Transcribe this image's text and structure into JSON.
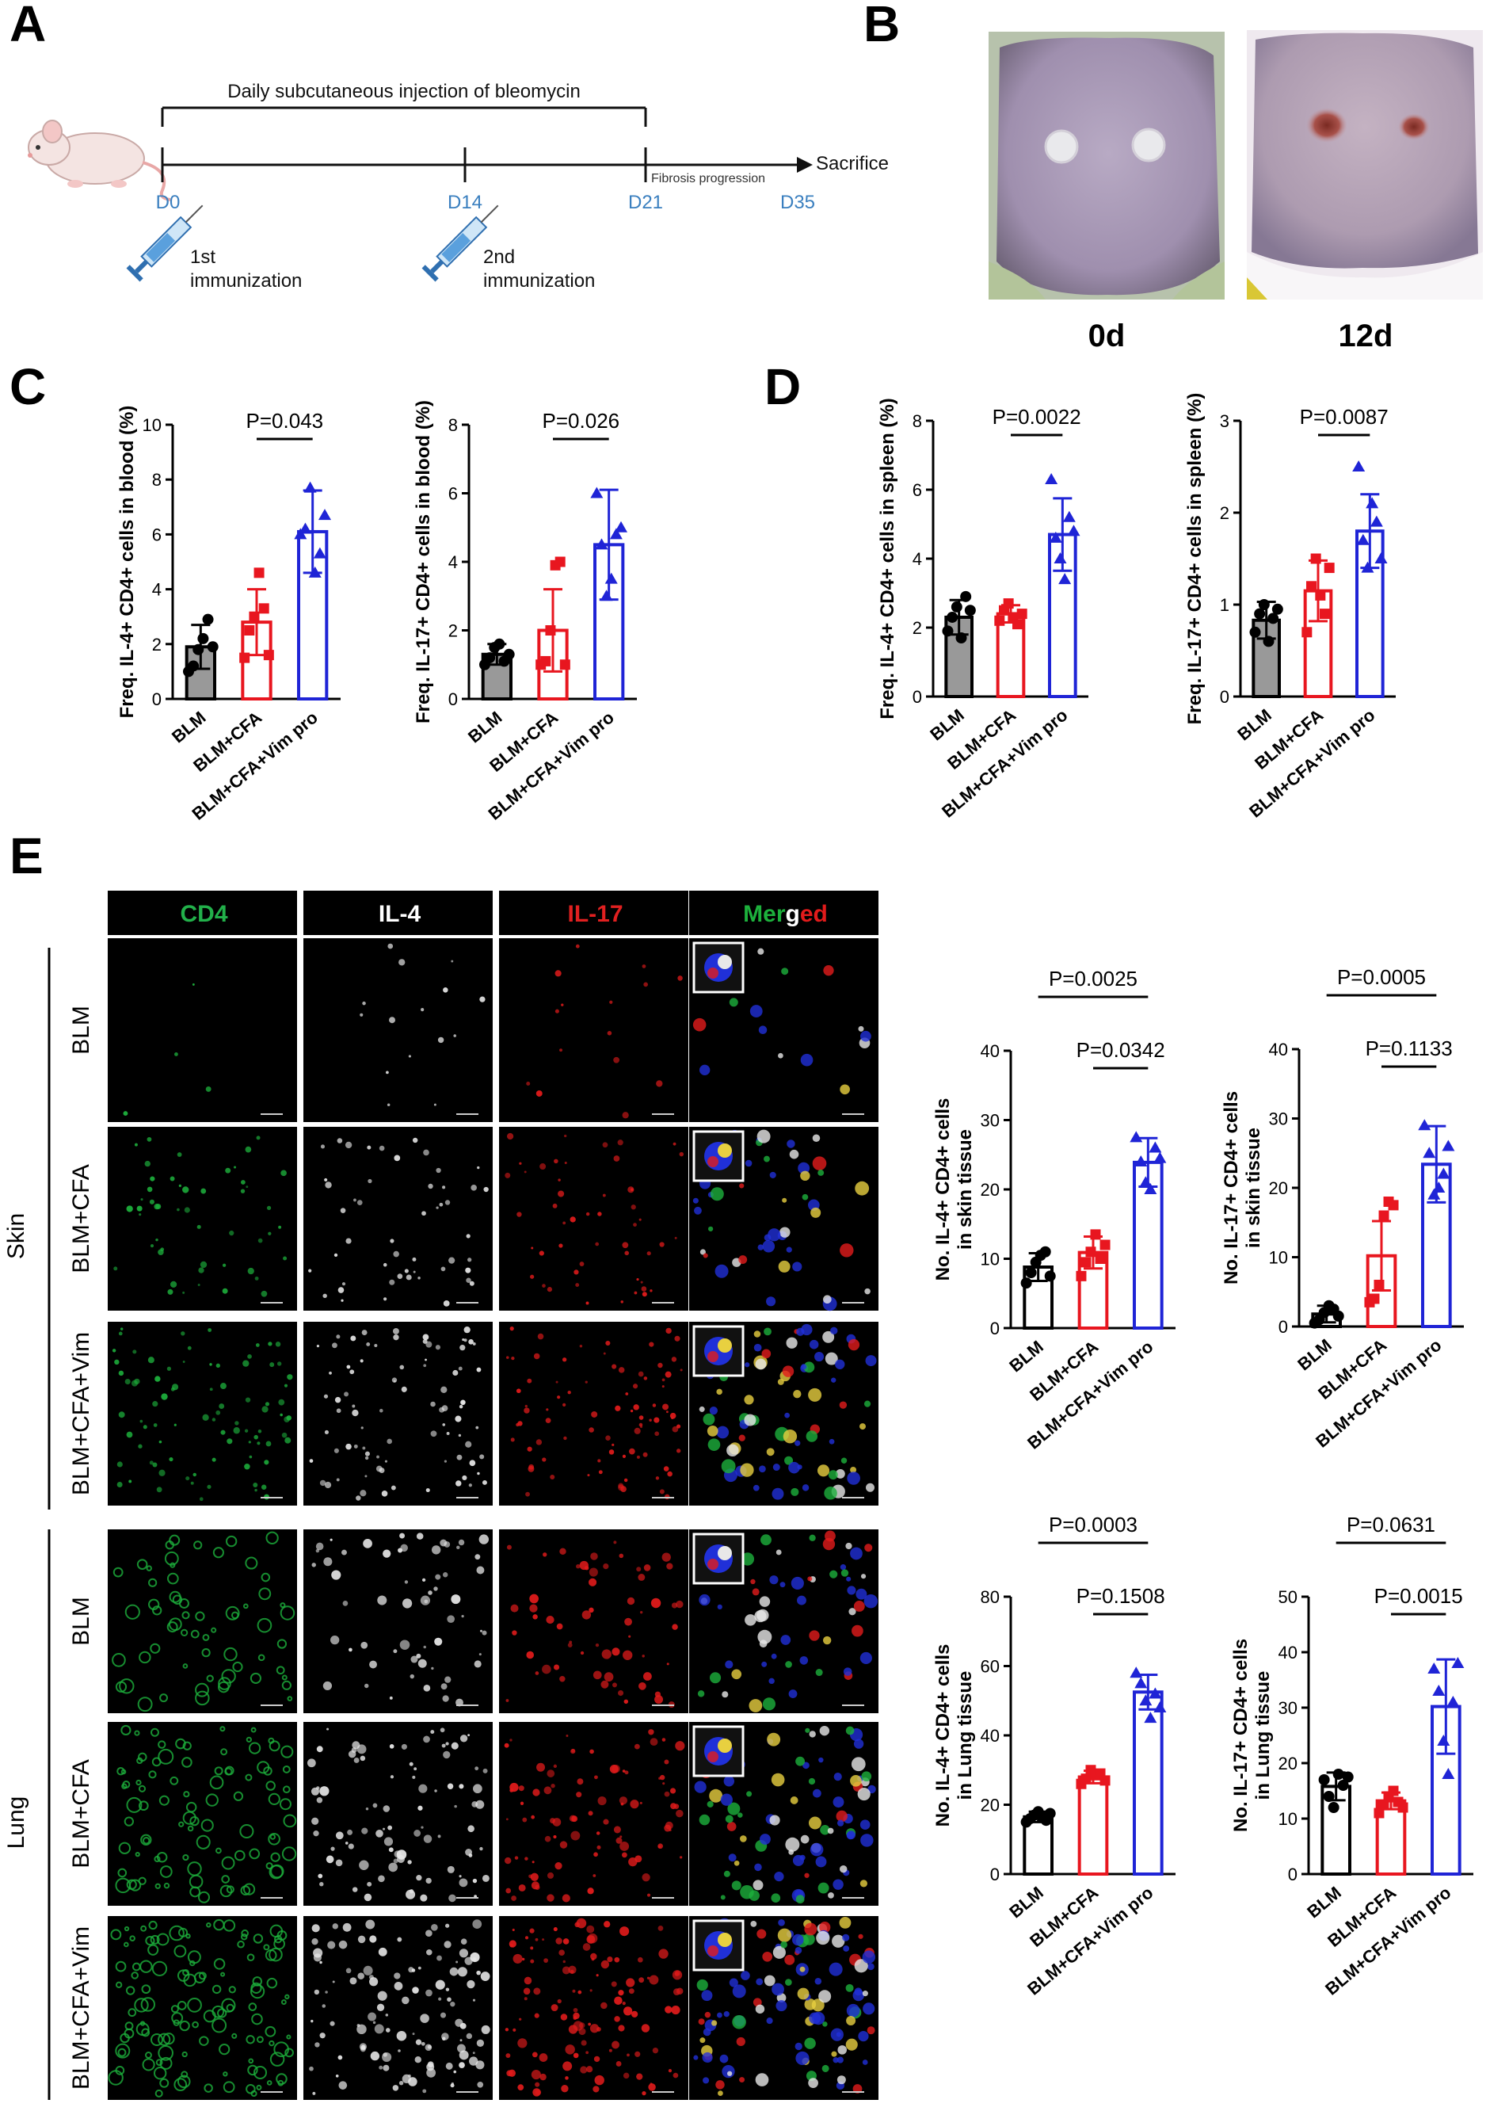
{
  "panels": {
    "A": "A",
    "B": "B",
    "C": "C",
    "D": "D",
    "E": "E"
  },
  "timeline": {
    "bracket_label": "Daily subcutaneous injection of bleomycin",
    "days": [
      "D0",
      "D14",
      "D21",
      "D35"
    ],
    "fibrosis_label": "Fibrosis progression",
    "endpoint": "Sacrifice",
    "first_immunization": [
      "1st",
      "immunization"
    ],
    "second_immunization": [
      "2nd",
      "immunization"
    ],
    "icons": [
      "mouse-icon",
      "syringe-icon"
    ]
  },
  "photos": {
    "labels": [
      "0d",
      "12d"
    ]
  },
  "micrographs": {
    "channels": [
      {
        "label": "CD4",
        "color": "#22b04a"
      },
      {
        "label": "IL-4",
        "color": "#ffffff"
      },
      {
        "label": "IL-17",
        "color": "#e02020"
      },
      {
        "label": "Merged",
        "color": "multi"
      }
    ],
    "merged_parts": [
      "Merged"
    ],
    "tissues": [
      {
        "label": "Skin",
        "rows": [
          "BLM",
          "BLM+CFA",
          "BLM+CFA+Vim"
        ]
      },
      {
        "label": "Lung",
        "rows": [
          "BLM",
          "BLM+CFA",
          "BLM+CFA+Vim"
        ]
      }
    ]
  },
  "chart_data": [
    {
      "id": "c1",
      "type": "bar",
      "categories": [
        "BLM",
        "BLM+CFA",
        "BLM+CFA+Vim pro"
      ],
      "colors": [
        "#000000",
        "#e8161f",
        "#1f24d6"
      ],
      "fills": [
        "#999999",
        "none",
        "none"
      ],
      "values": [
        1.9,
        2.8,
        6.1
      ],
      "errors": [
        0.8,
        1.2,
        1.5
      ],
      "points": [
        [
          1.0,
          1.2,
          1.8,
          2.2,
          2.9,
          1.9
        ],
        [
          1.5,
          2.5,
          3.0,
          4.6,
          3.3,
          1.6
        ],
        [
          6.0,
          6.2,
          7.7,
          4.6,
          5.3,
          6.7
        ]
      ],
      "markers": [
        "circle",
        "square",
        "triangle"
      ],
      "ylabel": "Freq. IL-4+ CD4+ cells in blood (%)",
      "ylim": [
        0,
        10
      ],
      "yticks": [
        0,
        2,
        4,
        6,
        8,
        10
      ],
      "comparisons": [
        {
          "from": 1,
          "to": 2,
          "label": "P=0.043"
        }
      ]
    },
    {
      "id": "c2",
      "type": "bar",
      "categories": [
        "BLM",
        "BLM+CFA",
        "BLM+CFA+Vim pro"
      ],
      "colors": [
        "#000000",
        "#e8161f",
        "#1f24d6"
      ],
      "fills": [
        "#999999",
        "none",
        "none"
      ],
      "values": [
        1.3,
        2.0,
        4.5
      ],
      "errors": [
        0.3,
        1.2,
        1.6
      ],
      "points": [
        [
          1.0,
          1.2,
          1.5,
          1.6,
          1.1,
          1.3
        ],
        [
          1.0,
          1.1,
          2.0,
          3.9,
          4.0,
          1.0
        ],
        [
          6.0,
          4.5,
          3.0,
          3.5,
          4.8,
          5.0
        ]
      ],
      "markers": [
        "circle",
        "square",
        "triangle"
      ],
      "ylabel": "Freq. IL-17+ CD4+ cells in blood (%)",
      "ylim": [
        0,
        8
      ],
      "yticks": [
        0,
        2,
        4,
        6,
        8
      ],
      "comparisons": [
        {
          "from": 1,
          "to": 2,
          "label": "P=0.026"
        }
      ]
    },
    {
      "id": "d1",
      "type": "bar",
      "categories": [
        "BLM",
        "BLM+CFA",
        "BLM+CFA+Vim pro"
      ],
      "colors": [
        "#000000",
        "#e8161f",
        "#1f24d6"
      ],
      "fills": [
        "#999999",
        "none",
        "none"
      ],
      "values": [
        2.3,
        2.4,
        4.7
      ],
      "errors": [
        0.5,
        0.25,
        1.05
      ],
      "points": [
        [
          1.9,
          2.3,
          2.6,
          1.7,
          2.9,
          2.5
        ],
        [
          2.2,
          2.5,
          2.7,
          2.3,
          2.1,
          2.4
        ],
        [
          6.3,
          4.6,
          4.0,
          3.4,
          5.2,
          4.8
        ]
      ],
      "markers": [
        "circle",
        "square",
        "triangle"
      ],
      "ylabel": "Freq. IL-4+ CD4+ cells in spleen (%)",
      "ylim": [
        0,
        8
      ],
      "yticks": [
        0,
        2,
        4,
        6,
        8
      ],
      "comparisons": [
        {
          "from": 1,
          "to": 2,
          "label": "P=0.0022"
        }
      ]
    },
    {
      "id": "d2",
      "type": "bar",
      "categories": [
        "BLM",
        "BLM+CFA",
        "BLM+CFA+Vim pro"
      ],
      "colors": [
        "#000000",
        "#e8161f",
        "#1f24d6"
      ],
      "fills": [
        "#999999",
        "none",
        "none"
      ],
      "values": [
        0.83,
        1.15,
        1.8
      ],
      "errors": [
        0.2,
        0.33,
        0.4
      ],
      "points": [
        [
          0.7,
          0.9,
          1.0,
          0.6,
          0.85,
          0.95
        ],
        [
          0.7,
          1.2,
          1.5,
          1.1,
          0.9,
          1.4
        ],
        [
          2.5,
          1.7,
          1.4,
          2.1,
          1.9,
          1.5
        ]
      ],
      "markers": [
        "circle",
        "square",
        "triangle"
      ],
      "ylabel": "Freq. IL-17+ CD4+ cells in spleen (%)",
      "ylim": [
        0,
        3
      ],
      "yticks": [
        0,
        1,
        2,
        3
      ],
      "comparisons": [
        {
          "from": 1,
          "to": 2,
          "label": "P=0.0087"
        }
      ]
    },
    {
      "id": "e1",
      "type": "bar",
      "categories": [
        "BLM",
        "BLM+CFA",
        "BLM+CFA+Vim pro"
      ],
      "colors": [
        "#000000",
        "#e8161f",
        "#1f24d6"
      ],
      "fills": [
        "none",
        "none",
        "none"
      ],
      "values": [
        8.8,
        10.9,
        23.9
      ],
      "errors": [
        2.0,
        2.3,
        3.5
      ],
      "points": [
        [
          6.5,
          8.0,
          9.5,
          10.5,
          11.0,
          7.5
        ],
        [
          7.5,
          9.5,
          11.0,
          13.5,
          10.0,
          12.0
        ],
        [
          27.5,
          24.0,
          21.0,
          20.0,
          26.0,
          24.5
        ]
      ],
      "markers": [
        "circle",
        "square",
        "triangle"
      ],
      "ylabel": "No. IL-4+ CD4+ cells\nin skin tissue",
      "ylim": [
        0,
        40
      ],
      "yticks": [
        0,
        10,
        20,
        30,
        40
      ],
      "comparisons": [
        {
          "from": 0,
          "to": 2,
          "label": "P=0.0025"
        },
        {
          "from": 1,
          "to": 2,
          "label": "P=0.0342"
        }
      ]
    },
    {
      "id": "e2",
      "type": "bar",
      "categories": [
        "BLM",
        "BLM+CFA",
        "BLM+CFA+Vim pro"
      ],
      "colors": [
        "#000000",
        "#e8161f",
        "#1f24d6"
      ],
      "fills": [
        "none",
        "none",
        "none"
      ],
      "values": [
        1.8,
        10.2,
        23.4
      ],
      "errors": [
        1.2,
        5.0,
        5.5
      ],
      "points": [
        [
          0.5,
          1.0,
          2.0,
          3.0,
          2.5,
          1.5
        ],
        [
          3.5,
          4.0,
          6.0,
          16.0,
          18.0,
          17.5
        ],
        [
          29.0,
          25.0,
          19.0,
          20.0,
          22.0,
          26.0
        ]
      ],
      "markers": [
        "circle",
        "square",
        "triangle"
      ],
      "ylabel": "No. IL-17+ CD4+ cells\nin skin tissue",
      "ylim": [
        0,
        40
      ],
      "yticks": [
        0,
        10,
        20,
        30,
        40
      ],
      "comparisons": [
        {
          "from": 0,
          "to": 2,
          "label": "P=0.0005"
        },
        {
          "from": 1,
          "to": 2,
          "label": "P=0.1133"
        }
      ]
    },
    {
      "id": "e3",
      "type": "bar",
      "categories": [
        "BLM",
        "BLM+CFA",
        "BLM+CFA+Vim pro"
      ],
      "colors": [
        "#000000",
        "#e8161f",
        "#1f24d6"
      ],
      "fills": [
        "none",
        "none",
        "none"
      ],
      "values": [
        16.5,
        28.0,
        52.5
      ],
      "errors": [
        1.5,
        1.8,
        5.0
      ],
      "points": [
        [
          15.0,
          16.0,
          17.0,
          18.0,
          16.5,
          15.5,
          17.5
        ],
        [
          26.0,
          27.5,
          30.0,
          28.5,
          29.0,
          27.0
        ],
        [
          58.0,
          55.0,
          50.0,
          45.0,
          52.0,
          48.0
        ]
      ],
      "markers": [
        "circle",
        "square",
        "triangle"
      ],
      "ylabel": "No. IL-4+ CD4+ cells\nin Lung tissue",
      "ylim": [
        0,
        80
      ],
      "yticks": [
        0,
        20,
        40,
        60,
        80
      ],
      "comparisons": [
        {
          "from": 0,
          "to": 2,
          "label": "P=0.0003"
        },
        {
          "from": 1,
          "to": 2,
          "label": "P=0.1508"
        }
      ]
    },
    {
      "id": "e4",
      "type": "bar",
      "categories": [
        "BLM",
        "BLM+CFA",
        "BLM+CFA+Vim pro"
      ],
      "colors": [
        "#000000",
        "#e8161f",
        "#1f24d6"
      ],
      "fills": [
        "none",
        "none",
        "none"
      ],
      "values": [
        15.8,
        13.2,
        30.2
      ],
      "errors": [
        2.5,
        1.5,
        8.5
      ],
      "points": [
        [
          17.0,
          14.0,
          12.0,
          18.0,
          16.0,
          17.5
        ],
        [
          11.0,
          12.5,
          14.0,
          15.0,
          13.0,
          12.0
        ],
        [
          37.0,
          33.0,
          24.0,
          18.0,
          31.0,
          38.0
        ]
      ],
      "markers": [
        "circle",
        "square",
        "triangle"
      ],
      "ylabel": "No. IL-17+ CD4+ cells\nin Lung tissue",
      "ylim": [
        0,
        50
      ],
      "yticks": [
        0,
        10,
        20,
        30,
        40,
        50
      ],
      "comparisons": [
        {
          "from": 0,
          "to": 2,
          "label": "P=0.0631"
        },
        {
          "from": 1,
          "to": 2,
          "label": "P=0.0015"
        }
      ]
    }
  ]
}
